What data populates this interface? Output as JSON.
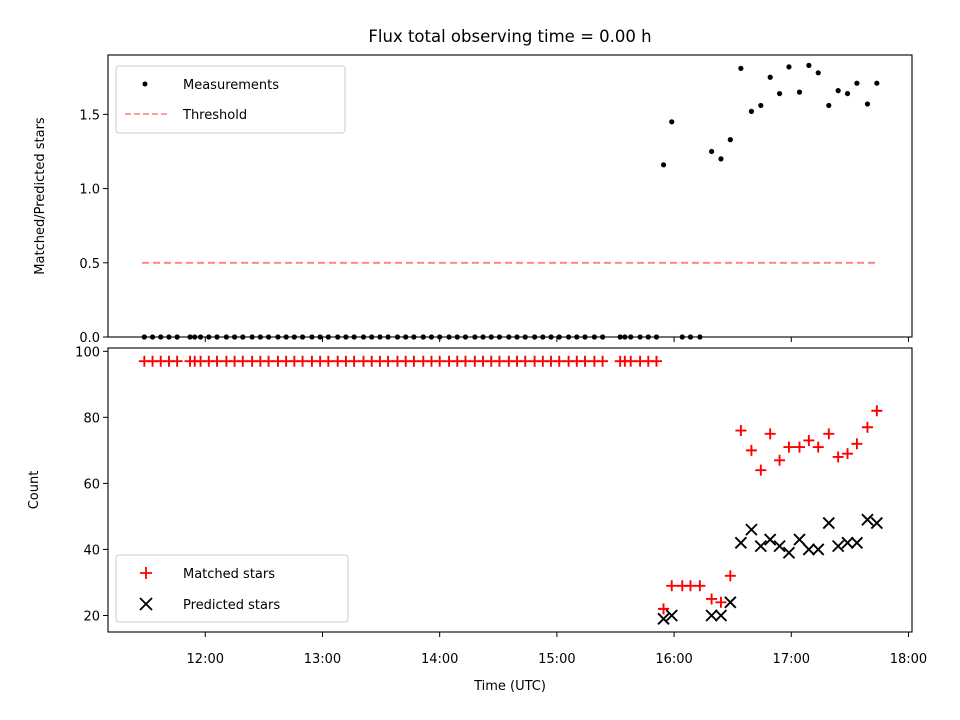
{
  "chart_data": [
    {
      "type": "scatter",
      "title": "Flux total observing time = 0.00 h",
      "xlabel": "",
      "ylabel": "Matched/Predicted stars",
      "xlim": [
        11.17,
        18.03
      ],
      "ylim": [
        0,
        1.9
      ],
      "yticks": [
        0.0,
        0.5,
        1.0,
        1.5
      ],
      "ytick_labels": [
        "0.0",
        "0.5",
        "1.0",
        "1.5"
      ],
      "legend_position": "upper-left",
      "series": [
        {
          "name": "Measurements",
          "marker": "dot",
          "color": "#000000",
          "points": [
            [
              11.48,
              0
            ],
            [
              11.55,
              0
            ],
            [
              11.62,
              0
            ],
            [
              11.69,
              0
            ],
            [
              11.76,
              0
            ],
            [
              11.87,
              0
            ],
            [
              11.91,
              0
            ],
            [
              11.96,
              0
            ],
            [
              12.03,
              0
            ],
            [
              12.1,
              0
            ],
            [
              12.18,
              0
            ],
            [
              12.25,
              0
            ],
            [
              12.32,
              0
            ],
            [
              12.4,
              0
            ],
            [
              12.47,
              0
            ],
            [
              12.54,
              0
            ],
            [
              12.62,
              0
            ],
            [
              12.69,
              0
            ],
            [
              12.76,
              0
            ],
            [
              12.83,
              0
            ],
            [
              12.91,
              0
            ],
            [
              12.98,
              0
            ],
            [
              13.05,
              0
            ],
            [
              13.13,
              0
            ],
            [
              13.2,
              0
            ],
            [
              13.27,
              0
            ],
            [
              13.35,
              0
            ],
            [
              13.42,
              0
            ],
            [
              13.49,
              0
            ],
            [
              13.56,
              0
            ],
            [
              13.64,
              0
            ],
            [
              13.71,
              0
            ],
            [
              13.78,
              0
            ],
            [
              13.86,
              0
            ],
            [
              13.93,
              0
            ],
            [
              14.0,
              0
            ],
            [
              14.08,
              0
            ],
            [
              14.15,
              0
            ],
            [
              14.22,
              0
            ],
            [
              14.3,
              0
            ],
            [
              14.37,
              0
            ],
            [
              14.44,
              0
            ],
            [
              14.51,
              0
            ],
            [
              14.59,
              0
            ],
            [
              14.66,
              0
            ],
            [
              14.73,
              0
            ],
            [
              14.81,
              0
            ],
            [
              14.88,
              0
            ],
            [
              14.95,
              0
            ],
            [
              15.02,
              0
            ],
            [
              15.1,
              0
            ],
            [
              15.17,
              0
            ],
            [
              15.24,
              0
            ],
            [
              15.32,
              0
            ],
            [
              15.39,
              0
            ],
            [
              15.54,
              0
            ],
            [
              15.58,
              0
            ],
            [
              15.63,
              0
            ],
            [
              15.71,
              0
            ],
            [
              15.78,
              0
            ],
            [
              15.85,
              0
            ],
            [
              16.07,
              0
            ],
            [
              16.14,
              0
            ],
            [
              16.22,
              0
            ],
            [
              15.91,
              1.16
            ],
            [
              15.98,
              1.45
            ],
            [
              16.32,
              1.25
            ],
            [
              16.4,
              1.2
            ],
            [
              16.48,
              1.33
            ],
            [
              16.57,
              1.81
            ],
            [
              16.66,
              1.52
            ],
            [
              16.74,
              1.56
            ],
            [
              16.82,
              1.75
            ],
            [
              16.9,
              1.64
            ],
            [
              16.98,
              1.82
            ],
            [
              17.07,
              1.65
            ],
            [
              17.15,
              1.83
            ],
            [
              17.23,
              1.78
            ],
            [
              17.32,
              1.56
            ],
            [
              17.4,
              1.66
            ],
            [
              17.48,
              1.64
            ],
            [
              17.56,
              1.71
            ],
            [
              17.65,
              1.57
            ],
            [
              17.73,
              1.71
            ]
          ]
        },
        {
          "name": "Threshold",
          "marker": "dashed-line",
          "color": "#ff8080",
          "points": [
            [
              11.46,
              0.5
            ],
            [
              17.75,
              0.5
            ]
          ]
        }
      ]
    },
    {
      "type": "scatter",
      "title": "",
      "xlabel": "Time (UTC)",
      "ylabel": "Count",
      "xlim": [
        11.17,
        18.03
      ],
      "ylim": [
        15,
        101
      ],
      "yticks": [
        20,
        40,
        60,
        80,
        100
      ],
      "ytick_labels": [
        "20",
        "40",
        "60",
        "80",
        "100"
      ],
      "xticks": [
        12,
        13,
        14,
        15,
        16,
        17,
        18
      ],
      "xtick_labels": [
        "12:00",
        "13:00",
        "14:00",
        "15:00",
        "16:00",
        "17:00",
        "18:00"
      ],
      "legend_position": "lower-left",
      "series": [
        {
          "name": "Matched stars",
          "marker": "plus",
          "color": "#ff0000",
          "points": [
            [
              11.48,
              97
            ],
            [
              11.55,
              97
            ],
            [
              11.62,
              97
            ],
            [
              11.69,
              97
            ],
            [
              11.76,
              97
            ],
            [
              11.87,
              97
            ],
            [
              11.91,
              97
            ],
            [
              11.96,
              97
            ],
            [
              12.03,
              97
            ],
            [
              12.1,
              97
            ],
            [
              12.18,
              97
            ],
            [
              12.25,
              97
            ],
            [
              12.32,
              97
            ],
            [
              12.4,
              97
            ],
            [
              12.47,
              97
            ],
            [
              12.54,
              97
            ],
            [
              12.62,
              97
            ],
            [
              12.69,
              97
            ],
            [
              12.76,
              97
            ],
            [
              12.83,
              97
            ],
            [
              12.91,
              97
            ],
            [
              12.98,
              97
            ],
            [
              13.05,
              97
            ],
            [
              13.13,
              97
            ],
            [
              13.2,
              97
            ],
            [
              13.27,
              97
            ],
            [
              13.35,
              97
            ],
            [
              13.42,
              97
            ],
            [
              13.49,
              97
            ],
            [
              13.56,
              97
            ],
            [
              13.64,
              97
            ],
            [
              13.71,
              97
            ],
            [
              13.78,
              97
            ],
            [
              13.86,
              97
            ],
            [
              13.93,
              97
            ],
            [
              14.0,
              97
            ],
            [
              14.08,
              97
            ],
            [
              14.15,
              97
            ],
            [
              14.22,
              97
            ],
            [
              14.3,
              97
            ],
            [
              14.37,
              97
            ],
            [
              14.44,
              97
            ],
            [
              14.51,
              97
            ],
            [
              14.59,
              97
            ],
            [
              14.66,
              97
            ],
            [
              14.73,
              97
            ],
            [
              14.81,
              97
            ],
            [
              14.88,
              97
            ],
            [
              14.95,
              97
            ],
            [
              15.02,
              97
            ],
            [
              15.1,
              97
            ],
            [
              15.17,
              97
            ],
            [
              15.24,
              97
            ],
            [
              15.32,
              97
            ],
            [
              15.39,
              97
            ],
            [
              15.54,
              97
            ],
            [
              15.58,
              97
            ],
            [
              15.63,
              97
            ],
            [
              15.71,
              97
            ],
            [
              15.78,
              97
            ],
            [
              15.85,
              97
            ],
            [
              15.91,
              22
            ],
            [
              15.98,
              29
            ],
            [
              16.07,
              29
            ],
            [
              16.14,
              29
            ],
            [
              16.22,
              29
            ],
            [
              16.32,
              25
            ],
            [
              16.4,
              24
            ],
            [
              16.48,
              32
            ],
            [
              16.57,
              76
            ],
            [
              16.66,
              70
            ],
            [
              16.74,
              64
            ],
            [
              16.82,
              75
            ],
            [
              16.9,
              67
            ],
            [
              16.98,
              71
            ],
            [
              17.07,
              71
            ],
            [
              17.15,
              73
            ],
            [
              17.23,
              71
            ],
            [
              17.32,
              75
            ],
            [
              17.4,
              68
            ],
            [
              17.48,
              69
            ],
            [
              17.56,
              72
            ],
            [
              17.65,
              77
            ],
            [
              17.73,
              82
            ]
          ]
        },
        {
          "name": "Predicted stars",
          "marker": "x",
          "color": "#000000",
          "points": [
            [
              15.91,
              19
            ],
            [
              15.98,
              20
            ],
            [
              16.32,
              20
            ],
            [
              16.4,
              20
            ],
            [
              16.48,
              24
            ],
            [
              16.57,
              42
            ],
            [
              16.66,
              46
            ],
            [
              16.74,
              41
            ],
            [
              16.82,
              43
            ],
            [
              16.9,
              41
            ],
            [
              16.98,
              39
            ],
            [
              17.07,
              43
            ],
            [
              17.15,
              40
            ],
            [
              17.23,
              40
            ],
            [
              17.32,
              48
            ],
            [
              17.4,
              41
            ],
            [
              17.48,
              42
            ],
            [
              17.56,
              42
            ],
            [
              17.65,
              49
            ],
            [
              17.73,
              48
            ]
          ]
        }
      ]
    }
  ]
}
